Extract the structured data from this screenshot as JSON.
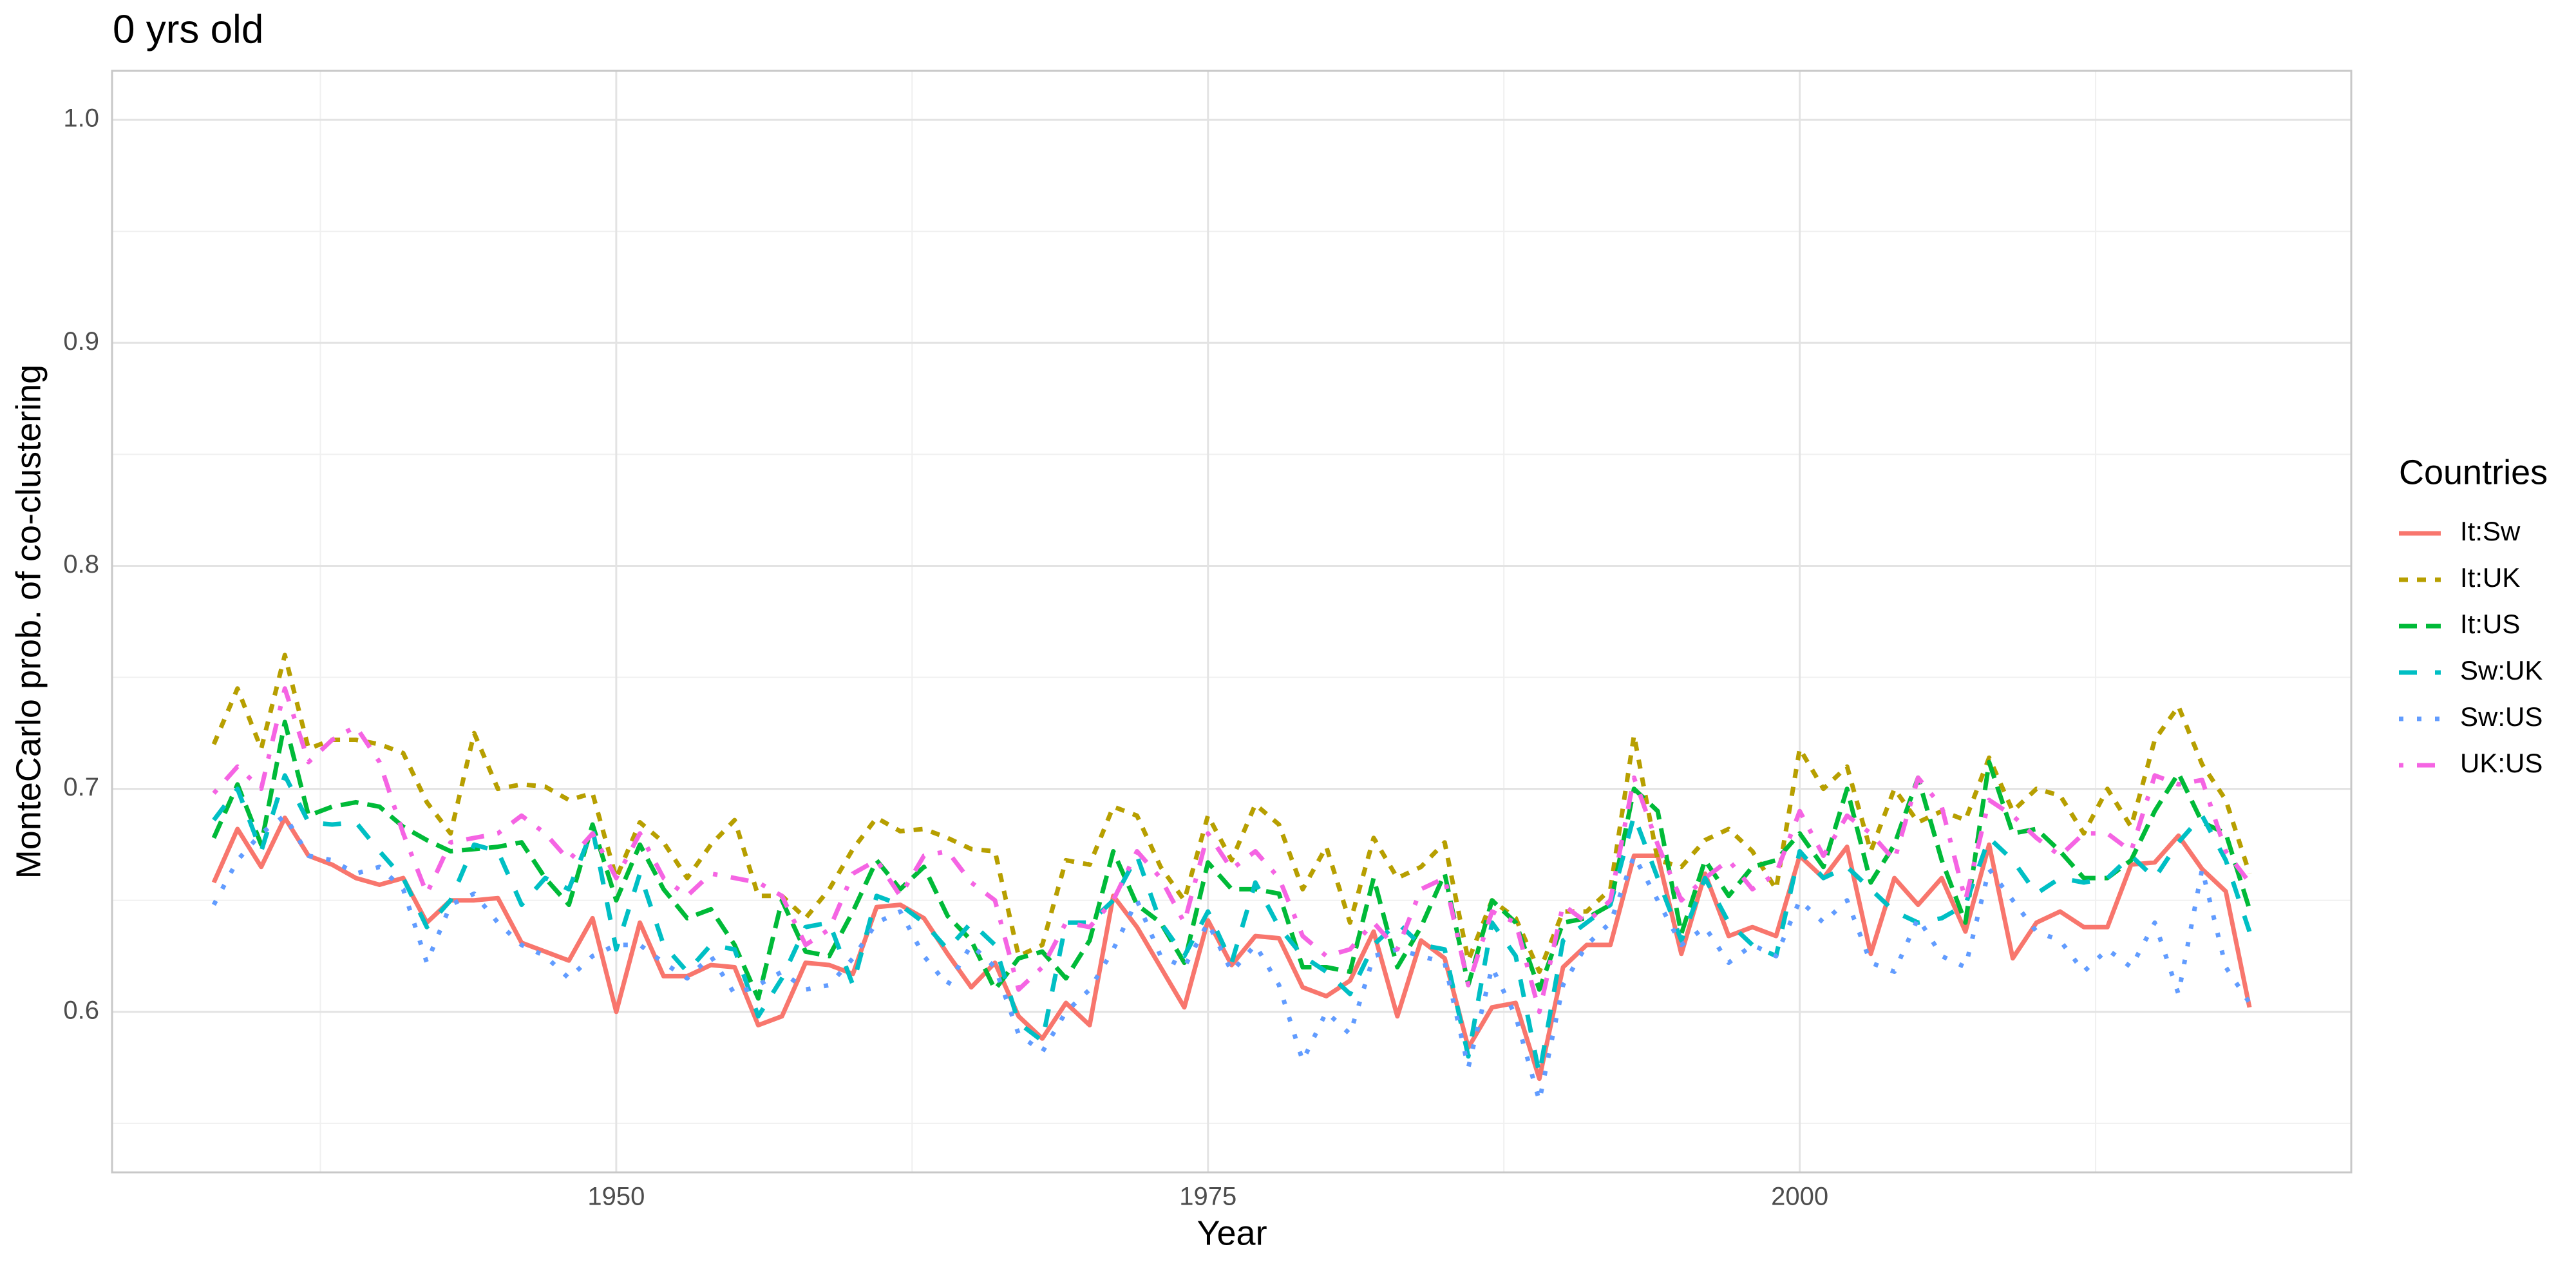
{
  "chart_data": {
    "type": "line",
    "title": "0 yrs old",
    "x_label": "Year",
    "y_label": "MonteCarlo prob. of co-clustering",
    "legend_title": "Countries",
    "legend": "right",
    "grid": true,
    "xlim": [
      1928.7,
      2023.3
    ],
    "xticks": [
      1950,
      1975,
      2000
    ],
    "x_minor_ticks": [
      1937.5,
      1962.5,
      1987.5,
      2012.5
    ],
    "ylim": [
      0.528,
      1.022
    ],
    "yticks": [
      0.6,
      0.7,
      0.8,
      0.9,
      {
        "value": 1,
        "label": "1.0"
      }
    ],
    "y_minor_ticks": [
      0.55,
      0.65,
      0.75,
      0.85,
      0.95
    ],
    "x": [
      1933,
      1934,
      1935,
      1936,
      1937,
      1938,
      1939,
      1940,
      1941,
      1942,
      1943,
      1944,
      1945,
      1946,
      1947,
      1948,
      1949,
      1950,
      1951,
      1952,
      1953,
      1954,
      1955,
      1956,
      1957,
      1958,
      1959,
      1960,
      1961,
      1962,
      1963,
      1964,
      1965,
      1966,
      1967,
      1968,
      1969,
      1970,
      1971,
      1972,
      1973,
      1974,
      1975,
      1976,
      1977,
      1978,
      1979,
      1980,
      1981,
      1982,
      1983,
      1984,
      1985,
      1986,
      1987,
      1988,
      1989,
      1990,
      1991,
      1992,
      1993,
      1994,
      1995,
      1996,
      1997,
      1998,
      1999,
      2000,
      2001,
      2002,
      2003,
      2004,
      2005,
      2006,
      2007,
      2008,
      2009,
      2010,
      2011,
      2012,
      2013,
      2014,
      2015,
      2016,
      2017,
      2018,
      2019
    ],
    "series": [
      {
        "name": "It:Sw",
        "color": "#F8766D",
        "linetype": "solid",
        "values": [
          0.658,
          0.682,
          0.665,
          0.687,
          0.67,
          0.666,
          0.66,
          0.657,
          0.66,
          0.64,
          0.65,
          0.65,
          0.651,
          0.631,
          0.627,
          0.623,
          0.642,
          0.6,
          0.64,
          0.616,
          0.616,
          0.621,
          0.62,
          0.594,
          0.598,
          0.622,
          0.621,
          0.617,
          0.647,
          0.648,
          0.642,
          0.626,
          0.611,
          0.622,
          0.598,
          0.588,
          0.604,
          0.594,
          0.652,
          0.638,
          0.62,
          0.602,
          0.641,
          0.621,
          0.634,
          0.633,
          0.611,
          0.607,
          0.614,
          0.636,
          0.598,
          0.632,
          0.624,
          0.584,
          0.602,
          0.604,
          0.57,
          0.62,
          0.63,
          0.63,
          0.67,
          0.67,
          0.626,
          0.662,
          0.634,
          0.638,
          0.634,
          0.67,
          0.66,
          0.674,
          0.626,
          0.66,
          0.648,
          0.66,
          0.636,
          0.675,
          0.624,
          0.64,
          0.645,
          0.638,
          0.638,
          0.666,
          0.667,
          0.679,
          0.664,
          0.654,
          0.602
        ]
      },
      {
        "name": "It:UK",
        "color": "#B79F00",
        "linetype": "22",
        "values": [
          0.72,
          0.745,
          0.718,
          0.76,
          0.718,
          0.722,
          0.722,
          0.72,
          0.716,
          0.694,
          0.68,
          0.725,
          0.7,
          0.702,
          0.701,
          0.695,
          0.698,
          0.66,
          0.685,
          0.676,
          0.66,
          0.675,
          0.686,
          0.652,
          0.652,
          0.642,
          0.655,
          0.673,
          0.687,
          0.681,
          0.682,
          0.678,
          0.673,
          0.672,
          0.625,
          0.63,
          0.668,
          0.666,
          0.692,
          0.688,
          0.665,
          0.65,
          0.688,
          0.668,
          0.693,
          0.684,
          0.655,
          0.674,
          0.64,
          0.678,
          0.66,
          0.665,
          0.676,
          0.623,
          0.65,
          0.642,
          0.618,
          0.645,
          0.645,
          0.655,
          0.724,
          0.668,
          0.665,
          0.677,
          0.682,
          0.672,
          0.655,
          0.718,
          0.7,
          0.71,
          0.672,
          0.7,
          0.685,
          0.69,
          0.686,
          0.714,
          0.69,
          0.7,
          0.697,
          0.68,
          0.7,
          0.683,
          0.722,
          0.737,
          0.711,
          0.695,
          0.662
        ]
      },
      {
        "name": "It:US",
        "color": "#00BA38",
        "linetype": "42",
        "values": [
          0.678,
          0.702,
          0.675,
          0.73,
          0.688,
          0.692,
          0.694,
          0.692,
          0.683,
          0.677,
          0.672,
          0.673,
          0.674,
          0.676,
          0.66,
          0.648,
          0.684,
          0.65,
          0.675,
          0.655,
          0.642,
          0.646,
          0.63,
          0.606,
          0.65,
          0.627,
          0.625,
          0.645,
          0.668,
          0.655,
          0.665,
          0.643,
          0.632,
          0.61,
          0.624,
          0.627,
          0.615,
          0.632,
          0.672,
          0.648,
          0.64,
          0.622,
          0.667,
          0.655,
          0.655,
          0.653,
          0.62,
          0.62,
          0.618,
          0.66,
          0.62,
          0.638,
          0.662,
          0.612,
          0.65,
          0.64,
          0.61,
          0.64,
          0.642,
          0.648,
          0.7,
          0.69,
          0.635,
          0.668,
          0.652,
          0.665,
          0.668,
          0.68,
          0.665,
          0.7,
          0.658,
          0.675,
          0.705,
          0.668,
          0.64,
          0.712,
          0.68,
          0.682,
          0.672,
          0.66,
          0.66,
          0.668,
          0.69,
          0.707,
          0.685,
          0.68,
          0.646
        ]
      },
      {
        "name": "Sw:UK",
        "color": "#00BFC4",
        "linetype": "44",
        "values": [
          0.686,
          0.7,
          0.672,
          0.706,
          0.685,
          0.684,
          0.685,
          0.672,
          0.66,
          0.638,
          0.65,
          0.675,
          0.672,
          0.648,
          0.66,
          0.655,
          0.682,
          0.628,
          0.662,
          0.63,
          0.618,
          0.63,
          0.628,
          0.598,
          0.615,
          0.638,
          0.64,
          0.612,
          0.652,
          0.648,
          0.64,
          0.628,
          0.64,
          0.63,
          0.595,
          0.587,
          0.64,
          0.64,
          0.65,
          0.67,
          0.64,
          0.625,
          0.645,
          0.622,
          0.658,
          0.638,
          0.625,
          0.618,
          0.608,
          0.63,
          0.64,
          0.63,
          0.628,
          0.58,
          0.64,
          0.625,
          0.572,
          0.632,
          0.64,
          0.648,
          0.688,
          0.66,
          0.632,
          0.66,
          0.64,
          0.63,
          0.625,
          0.672,
          0.66,
          0.665,
          0.655,
          0.645,
          0.64,
          0.642,
          0.648,
          0.678,
          0.668,
          0.653,
          0.66,
          0.658,
          0.66,
          0.67,
          0.66,
          0.676,
          0.688,
          0.668,
          0.636
        ]
      },
      {
        "name": "Sw:US",
        "color": "#619CFF",
        "linetype": "13",
        "values": [
          0.648,
          0.668,
          0.68,
          0.688,
          0.67,
          0.668,
          0.662,
          0.665,
          0.655,
          0.622,
          0.648,
          0.653,
          0.64,
          0.63,
          0.625,
          0.615,
          0.625,
          0.63,
          0.63,
          0.622,
          0.615,
          0.625,
          0.608,
          0.612,
          0.618,
          0.61,
          0.612,
          0.624,
          0.64,
          0.645,
          0.625,
          0.612,
          0.63,
          0.62,
          0.59,
          0.582,
          0.6,
          0.61,
          0.628,
          0.65,
          0.625,
          0.62,
          0.64,
          0.618,
          0.63,
          0.612,
          0.578,
          0.6,
          0.59,
          0.625,
          0.628,
          0.625,
          0.622,
          0.575,
          0.62,
          0.598,
          0.56,
          0.612,
          0.63,
          0.64,
          0.67,
          0.65,
          0.63,
          0.638,
          0.622,
          0.63,
          0.625,
          0.65,
          0.64,
          0.65,
          0.622,
          0.618,
          0.642,
          0.625,
          0.62,
          0.664,
          0.65,
          0.636,
          0.632,
          0.618,
          0.628,
          0.62,
          0.64,
          0.608,
          0.664,
          0.62,
          0.604
        ]
      },
      {
        "name": "UK:US",
        "color": "#F564E3",
        "linetype": "1343",
        "values": [
          0.698,
          0.71,
          0.7,
          0.745,
          0.712,
          0.722,
          0.728,
          0.712,
          0.68,
          0.653,
          0.676,
          0.678,
          0.68,
          0.688,
          0.68,
          0.668,
          0.68,
          0.66,
          0.68,
          0.66,
          0.652,
          0.662,
          0.66,
          0.658,
          0.652,
          0.63,
          0.637,
          0.662,
          0.668,
          0.652,
          0.67,
          0.672,
          0.658,
          0.65,
          0.61,
          0.62,
          0.64,
          0.638,
          0.65,
          0.672,
          0.66,
          0.64,
          0.68,
          0.664,
          0.672,
          0.66,
          0.634,
          0.625,
          0.628,
          0.64,
          0.628,
          0.655,
          0.66,
          0.612,
          0.645,
          0.64,
          0.6,
          0.648,
          0.64,
          0.65,
          0.705,
          0.675,
          0.65,
          0.66,
          0.668,
          0.655,
          0.662,
          0.69,
          0.67,
          0.688,
          0.68,
          0.668,
          0.705,
          0.692,
          0.65,
          0.695,
          0.688,
          0.678,
          0.67,
          0.68,
          0.68,
          0.672,
          0.706,
          0.702,
          0.704,
          0.672,
          0.658
        ]
      }
    ]
  }
}
